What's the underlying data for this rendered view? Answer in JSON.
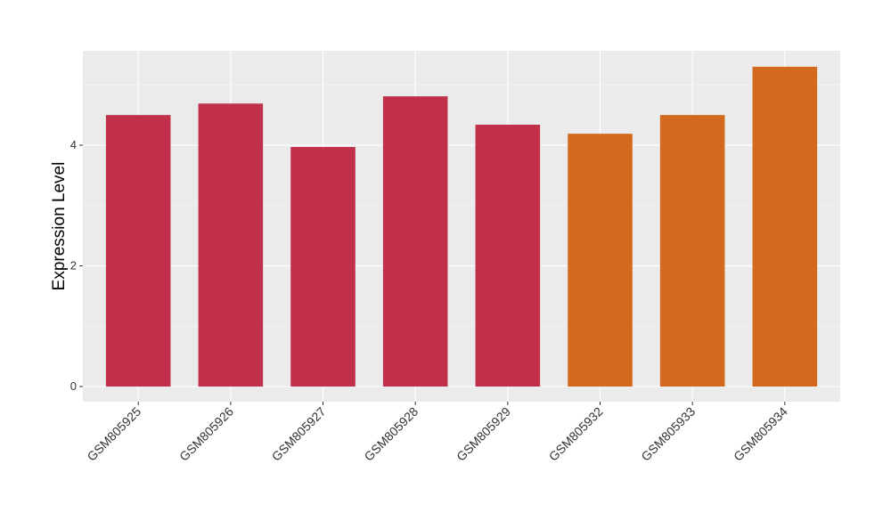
{
  "chart_data": {
    "type": "bar",
    "y_label": "Expression Level",
    "categories": [
      "GSM805925",
      "GSM805926",
      "GSM805927",
      "GSM805928",
      "GSM805929",
      "GSM805932",
      "GSM805933",
      "GSM805934"
    ],
    "values": [
      4.5,
      4.69,
      3.97,
      4.81,
      4.34,
      4.19,
      4.5,
      5.3
    ],
    "colors": [
      "#c0304a",
      "#c0304a",
      "#c0304a",
      "#c0304a",
      "#c0304a",
      "#d2691e",
      "#d2691e",
      "#d2691e"
    ],
    "ylim": [
      -0.25,
      5.565
    ],
    "yticks": [
      0,
      2,
      4
    ],
    "grid": true
  }
}
